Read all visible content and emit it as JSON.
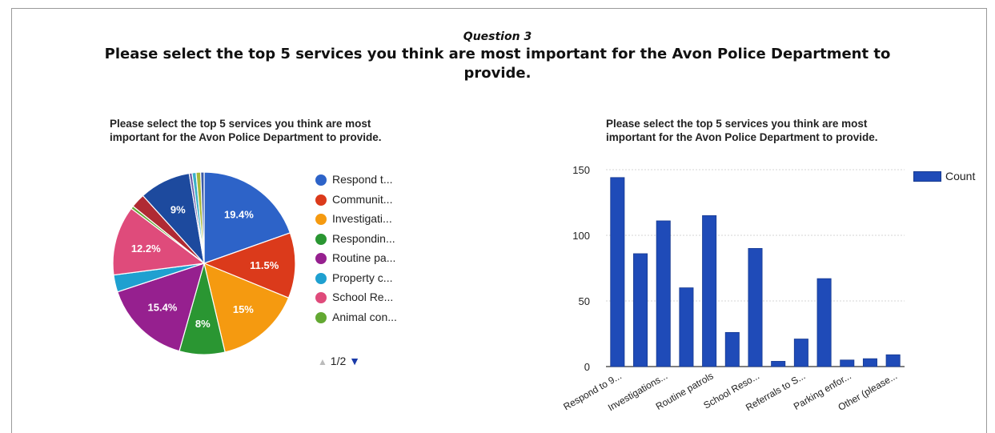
{
  "question_label": "Question 3",
  "question_text": "Please select the top 5 services you think are most important for the Avon Police Department to provide.",
  "chart_data": [
    {
      "type": "pie",
      "title": "Please select the top 5 services you think are most important for the Avon Police Department to provide.",
      "slices": [
        {
          "label": "Respond t...",
          "value": 19.4,
          "display": "19.4%",
          "color": "#2d63c8"
        },
        {
          "label": "Communit...",
          "value": 11.5,
          "display": "11.5%",
          "color": "#db3a1b"
        },
        {
          "label": "Investigati...",
          "value": 15.0,
          "display": "15%",
          "color": "#f59a10"
        },
        {
          "label": "Respondin...",
          "value": 8.0,
          "display": "8%",
          "color": "#2a9632"
        },
        {
          "label": "Routine pa...",
          "value": 15.4,
          "display": "15.4%",
          "color": "#96208f"
        },
        {
          "label": "Property c...",
          "value": 3.0,
          "display": "",
          "color": "#1fa0d0"
        },
        {
          "label": "School Re...",
          "value": 12.2,
          "display": "12.2%",
          "color": "#df4b7b"
        },
        {
          "label": "Animal con...",
          "value": 0.5,
          "display": "",
          "color": "#63a832"
        },
        {
          "label": "",
          "value": 2.5,
          "display": "",
          "color": "#b02a33"
        },
        {
          "label": "",
          "value": 9.0,
          "display": "9%",
          "color": "#1d4a9e"
        },
        {
          "label": "",
          "value": 0.5,
          "display": "",
          "color": "#6a5aa8"
        },
        {
          "label": "",
          "value": 0.7,
          "display": "",
          "color": "#3cb0c8"
        },
        {
          "label": "",
          "value": 0.8,
          "display": "",
          "color": "#a8b83a"
        },
        {
          "label": "",
          "value": 0.6,
          "display": "",
          "color": "#3a5aa8"
        }
      ],
      "legend_placement": "right",
      "legend_page": "1/2"
    },
    {
      "type": "bar",
      "title": "Please select the top 5 services you think are most important for the Avon Police Department to provide.",
      "values": [
        144,
        86,
        111,
        60,
        115,
        26,
        90,
        4,
        21,
        67,
        5,
        6,
        9
      ],
      "tick_labels": [
        "Respond to 9...",
        "Investigations...",
        "Routine patrols",
        "School Reso...",
        "Referrals to S...",
        "Parking enfor...",
        "Other (please..."
      ],
      "yticks": [
        0,
        50,
        100,
        150
      ],
      "ylim": [
        0,
        150
      ],
      "series": [
        {
          "name": "Count",
          "color": "#1f4bb8"
        }
      ],
      "legend_placement": "top-right",
      "grid": true
    }
  ]
}
